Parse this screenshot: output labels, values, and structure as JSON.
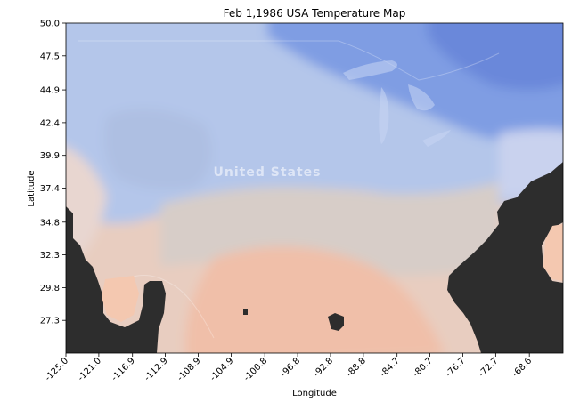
{
  "chart_data": {
    "type": "heatmap",
    "title": "Feb 1,1986 USA Temperature Map",
    "xlabel": "Longitude",
    "ylabel": "Latitude",
    "xlim": [
      -125.0,
      -64.5
    ],
    "ylim": [
      24.8,
      50.0
    ],
    "x_ticks": [
      -125.0,
      -121.0,
      -116.9,
      -112.9,
      -108.9,
      -104.9,
      -100.8,
      -96.8,
      -92.8,
      -88.8,
      -84.7,
      -80.7,
      -76.7,
      -72.7,
      -68.6
    ],
    "x_tick_labels": [
      "-125.0",
      "-121.0",
      "-116.9",
      "-112.9",
      "-108.9",
      "-104.9",
      "-100.8",
      "-96.8",
      "-92.8",
      "-88.8",
      "-84.7",
      "-80.7",
      "-76.7",
      "-72.7",
      "-68.6"
    ],
    "y_ticks": [
      50.0,
      47.5,
      44.9,
      42.4,
      39.9,
      37.4,
      34.8,
      32.3,
      29.8,
      27.3
    ],
    "y_tick_labels": [
      "50.0",
      "47.5",
      "44.9",
      "42.4",
      "39.9",
      "37.4",
      "34.8",
      "32.3",
      "29.8",
      "27.3"
    ],
    "colormap": "coolwarm",
    "colors": {
      "cold": "#6f8fe0",
      "cool": "#aac2ee",
      "neutral": "#d9d3cf",
      "warm": "#eec6b4",
      "hot": "#f3b39c",
      "no_data": "#2d2d2d"
    },
    "grid": false,
    "legend": "none"
  },
  "basemap": {
    "label": "United States"
  }
}
